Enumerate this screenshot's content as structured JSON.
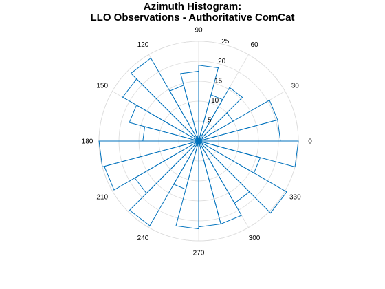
{
  "chart_data": {
    "type": "polar-histogram",
    "title": [
      "Azimuth Histogram:",
      "LLO Observations - Authoritative ComCat"
    ],
    "theta_tick_labels": [
      "0",
      "30",
      "60",
      "90",
      "120",
      "150",
      "180",
      "210",
      "240",
      "270",
      "300",
      "330"
    ],
    "r_tick_labels": [
      "5",
      "10",
      "15",
      "20",
      "25"
    ],
    "rlim": [
      0,
      25
    ],
    "bin_width_deg": 15,
    "bins": [
      {
        "start": 0,
        "end": 15,
        "count": 20.5
      },
      {
        "start": 15,
        "end": 30,
        "count": 20.5
      },
      {
        "start": 30,
        "end": 45,
        "count": 10.0
      },
      {
        "start": 45,
        "end": 60,
        "count": 15.5
      },
      {
        "start": 60,
        "end": 75,
        "count": 12.0
      },
      {
        "start": 75,
        "end": 90,
        "count": 19.0
      },
      {
        "start": 90,
        "end": 105,
        "count": 17.5
      },
      {
        "start": 105,
        "end": 120,
        "count": 14.5
      },
      {
        "start": 120,
        "end": 135,
        "count": 24.0
      },
      {
        "start": 135,
        "end": 150,
        "count": 22.0
      },
      {
        "start": 150,
        "end": 165,
        "count": 18.0
      },
      {
        "start": 165,
        "end": 180,
        "count": 14.0
      },
      {
        "start": 180,
        "end": 195,
        "count": 25.0
      },
      {
        "start": 195,
        "end": 210,
        "count": 24.5
      },
      {
        "start": 210,
        "end": 225,
        "count": 18.5
      },
      {
        "start": 225,
        "end": 240,
        "count": 24.5
      },
      {
        "start": 240,
        "end": 255,
        "count": 12.5
      },
      {
        "start": 255,
        "end": 270,
        "count": 22.0
      },
      {
        "start": 270,
        "end": 285,
        "count": 21.5
      },
      {
        "start": 285,
        "end": 300,
        "count": 21.5
      },
      {
        "start": 300,
        "end": 315,
        "count": 18.0
      },
      {
        "start": 315,
        "end": 330,
        "count": 25.5
      },
      {
        "start": 330,
        "end": 345,
        "count": 16.0
      },
      {
        "start": 345,
        "end": 360,
        "count": 25.0
      }
    ],
    "grid": true,
    "colors": {
      "series": "#0072bd",
      "grid": "#dcdcdc",
      "text": "#000000"
    }
  }
}
